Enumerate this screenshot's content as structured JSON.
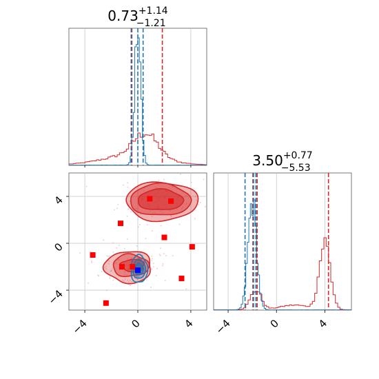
{
  "chart_data": {
    "type": "corner",
    "parameters": [
      {
        "median": "0.73",
        "plus": "+1.14",
        "minus": "−1.21"
      },
      {
        "median": "3.50",
        "plus": "+0.77",
        "minus": "−5.53"
      }
    ],
    "x_param0_range": [
      -5.2,
      5.2
    ],
    "x_param1_range": [
      -5.2,
      6.2
    ],
    "y_param1_range": [
      -5.7,
      6.0
    ],
    "ticks_param0": [
      -4,
      0,
      4
    ],
    "ticks_param1": [
      -4,
      0,
      4
    ],
    "tick_labels": [
      "−4",
      "0",
      "4"
    ],
    "grid": true,
    "series_colors": {
      "red": "#d62728",
      "blue": "#1f77b4",
      "bright_red": "#ff0000",
      "bright_blue": "#0000ff"
    },
    "marginal_param0": {
      "blue_quantiles": [
        -0.5,
        0.0,
        0.4
      ],
      "red_quantiles": [
        -0.45,
        1.85
      ],
      "blue_peak_x": 0.0,
      "red_peak_x": 0.7
    },
    "marginal_param1": {
      "blue_quantiles": [
        -2.6,
        -1.9,
        -1.7
      ],
      "red_quantiles": [
        -1.95,
        -1.6,
        4.3
      ],
      "blue_peak_x": -2.0,
      "red_peak_x": 4.0
    },
    "joint_markers_red": [
      [
        0.9,
        3.8
      ],
      [
        2.5,
        3.6
      ],
      [
        -1.3,
        1.7
      ],
      [
        2.0,
        0.5
      ],
      [
        4.1,
        -0.3
      ],
      [
        -3.4,
        -1.0
      ],
      [
        -1.2,
        -2.0
      ],
      [
        -0.4,
        -2.0
      ],
      [
        3.3,
        -3.0
      ],
      [
        -2.4,
        -5.1
      ]
    ],
    "joint_marker_blue": [
      0.0,
      -2.3
    ],
    "red_clusters": [
      [
        1.7,
        3.7
      ],
      [
        -0.7,
        -1.9
      ]
    ],
    "blue_cluster": [
      0.1,
      -2.2
    ]
  }
}
